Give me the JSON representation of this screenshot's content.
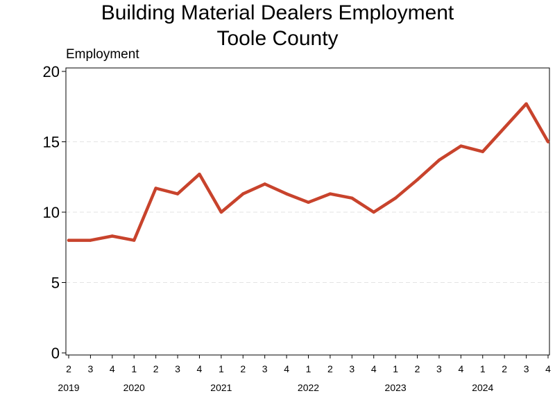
{
  "chart_data": {
    "type": "line",
    "title": "Building Material Dealers Employment",
    "subtitle": "Toole County",
    "ylabel": "Employment",
    "xlabel": "",
    "ylim": [
      0,
      20
    ],
    "yticks": [
      0,
      5,
      10,
      15,
      20
    ],
    "grid": "horizontal dashed",
    "line_color": "#c8432c",
    "quarters": [
      "2",
      "3",
      "4",
      "1",
      "2",
      "3",
      "4",
      "1",
      "2",
      "3",
      "4",
      "1",
      "2",
      "3",
      "4",
      "1",
      "2",
      "3",
      "4",
      "1",
      "2",
      "3",
      "4"
    ],
    "years": [
      {
        "label": "2019",
        "index": 0
      },
      {
        "label": "2020",
        "index": 3
      },
      {
        "label": "2021",
        "index": 7
      },
      {
        "label": "2022",
        "index": 11
      },
      {
        "label": "2023",
        "index": 15
      },
      {
        "label": "2024",
        "index": 19
      }
    ],
    "series": [
      {
        "values": [
          8,
          8,
          8.3,
          8,
          11.7,
          11.3,
          12.7,
          10,
          11.3,
          12,
          11.3,
          10.7,
          11.3,
          11,
          10,
          11,
          12.3,
          13.7,
          14.7,
          14.3,
          16,
          17.7,
          15
        ]
      }
    ]
  }
}
